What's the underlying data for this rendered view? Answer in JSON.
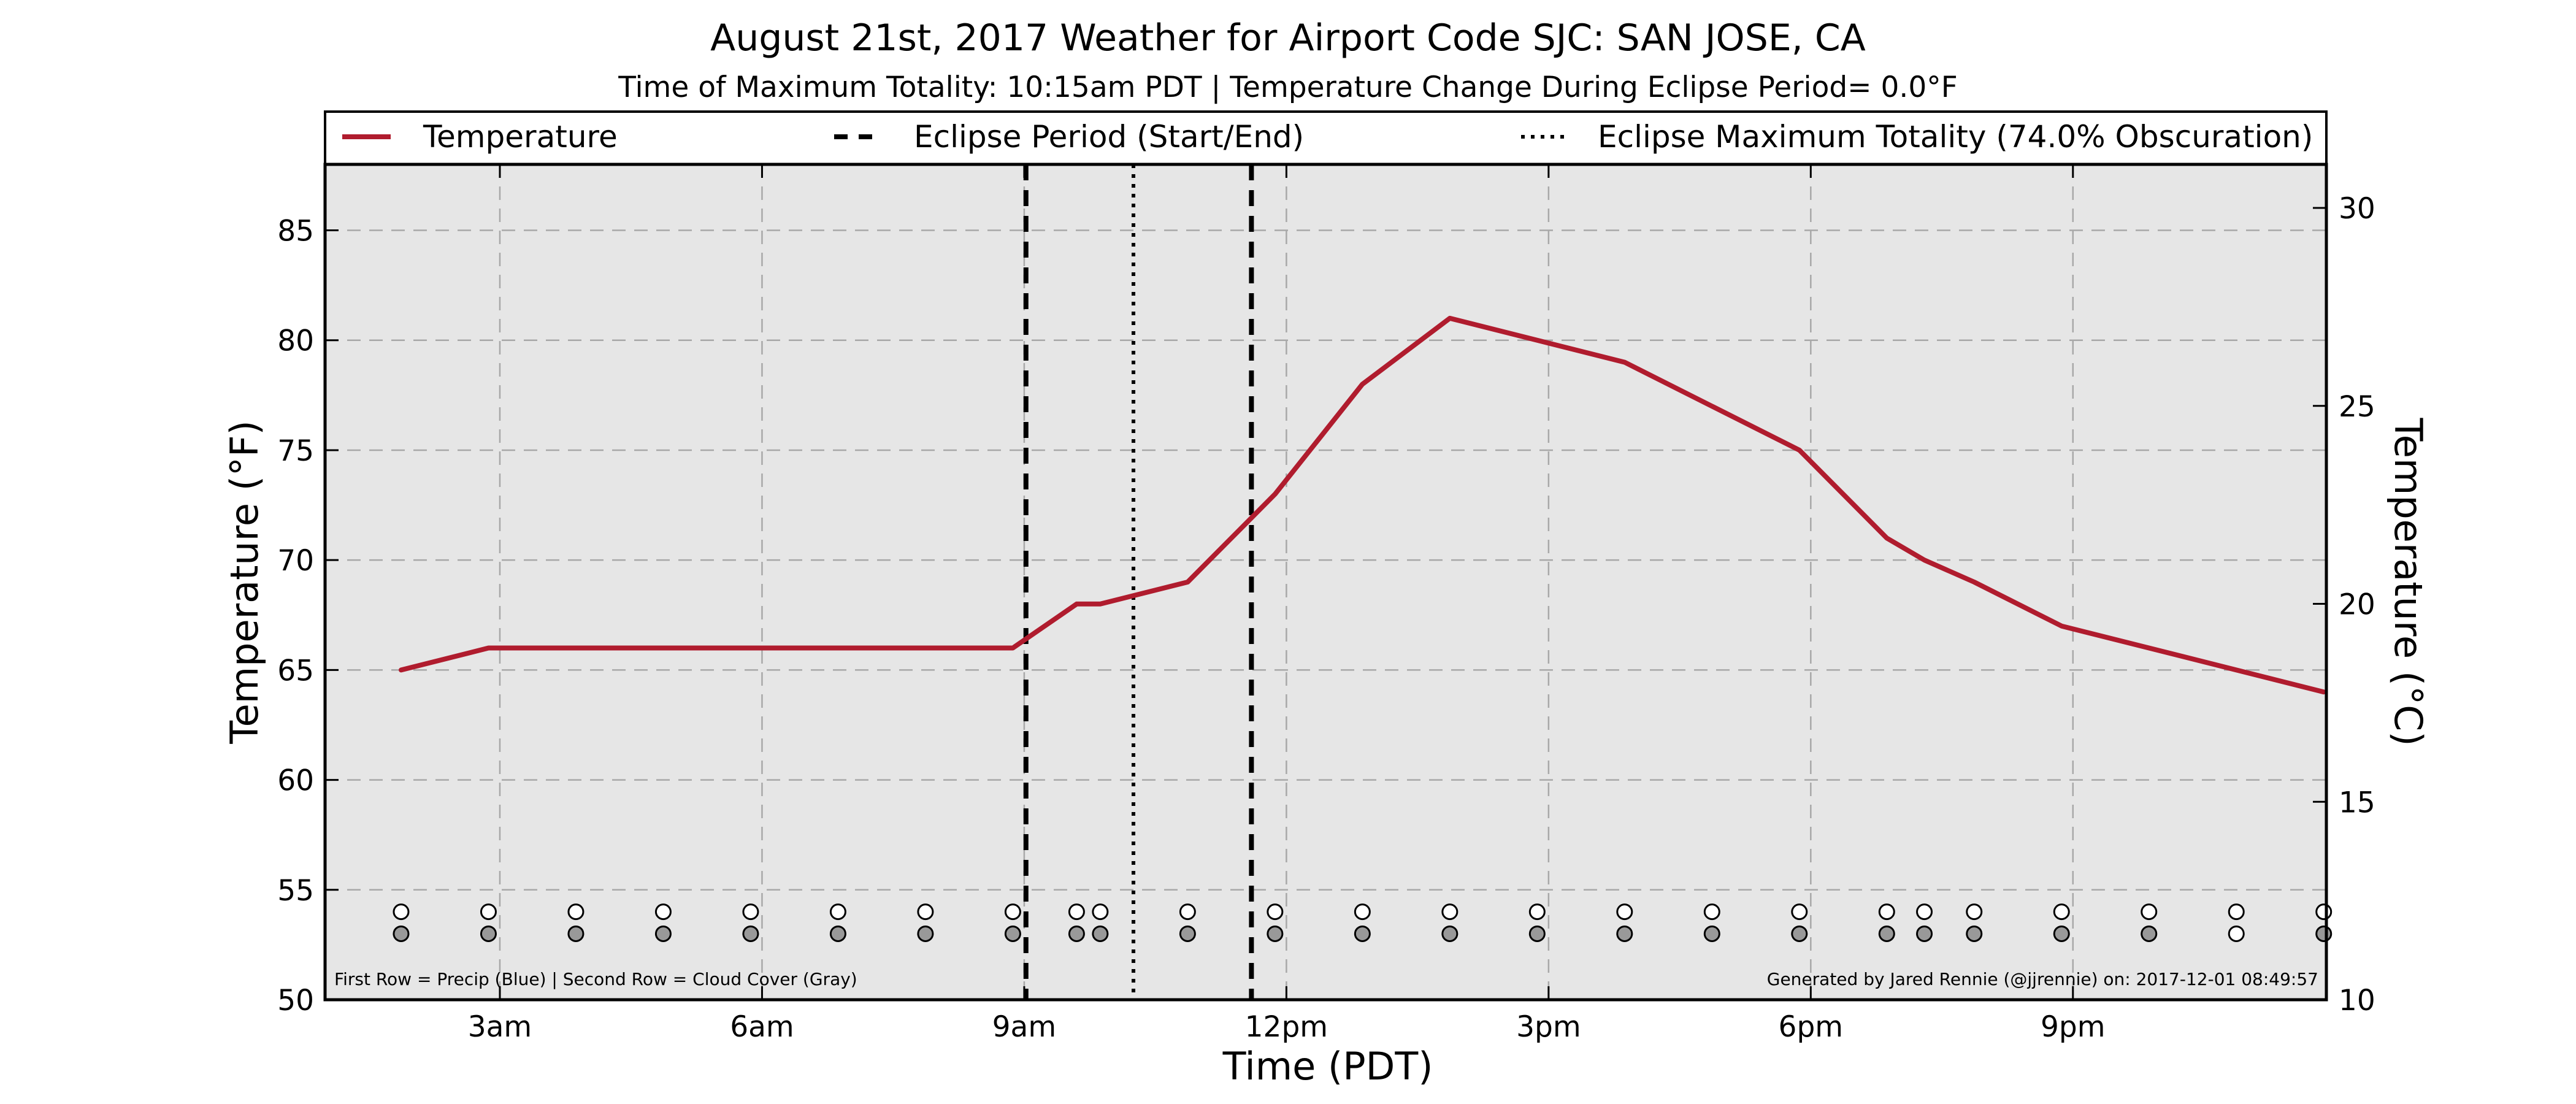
{
  "title": "August 21st, 2017 Weather for Airport Code SJC: SAN JOSE, CA",
  "subtitle": "Time of Maximum Totality: 10:15am PDT | Temperature Change During Eclipse Period= 0.0°F",
  "colors": {
    "temperature_line": "#b01c2e",
    "plot_background": "#e6e6e6",
    "cloud_marker": "#999999",
    "precip_marker": "#ffffff"
  },
  "legend": {
    "temperature": "Temperature",
    "eclipse_period": "Eclipse Period (Start/End)",
    "eclipse_max": "Eclipse Maximum Totality (74.0% Obscuration)"
  },
  "footnote_left": "First Row = Precip (Blue) | Second Row = Cloud Cover (Gray)",
  "footnote_right": "Generated by Jared Rennie (@jjrennie) on: 2017-12-01 08:49:57",
  "chart_data": {
    "type": "line",
    "title": "August 21st, 2017 Weather for Airport Code SJC: SAN JOSE, CA",
    "xlabel": "Time (PDT)",
    "ylabel": "Temperature (°F)",
    "ylabel_right": "Temperature (°C)",
    "xlim": [
      1.0,
      23.9
    ],
    "ylim": [
      50,
      88
    ],
    "ylim_right": [
      10,
      31.1
    ],
    "x_ticks": [
      {
        "value": 3,
        "label": "3am"
      },
      {
        "value": 6,
        "label": "6am"
      },
      {
        "value": 9,
        "label": "9am"
      },
      {
        "value": 12,
        "label": "12pm"
      },
      {
        "value": 15,
        "label": "3pm"
      },
      {
        "value": 18,
        "label": "6pm"
      },
      {
        "value": 21,
        "label": "9pm"
      }
    ],
    "y_ticks": [
      50,
      55,
      60,
      65,
      70,
      75,
      80,
      85
    ],
    "y_ticks_right": [
      10,
      15,
      20,
      25,
      30
    ],
    "grid": true,
    "legend_position": "top",
    "series": [
      {
        "name": "Temperature",
        "x": [
          1.87,
          2.87,
          3.87,
          4.87,
          5.87,
          6.87,
          7.87,
          8.87,
          9.6,
          9.87,
          10.87,
          11.87,
          12.87,
          13.87,
          14.87,
          15.87,
          16.87,
          17.87,
          18.87,
          19.3,
          19.87,
          20.87,
          21.87,
          22.87,
          23.87
        ],
        "y": [
          65,
          66,
          66,
          66,
          66,
          66,
          66,
          66,
          68,
          68,
          69,
          73,
          78,
          81,
          80,
          79,
          77,
          75,
          71,
          70,
          69,
          67,
          66,
          65,
          64
        ]
      }
    ],
    "vertical_lines": [
      {
        "label": "Eclipse Period (Start/End)",
        "x": [
          9.02,
          11.6
        ],
        "style": "dashed"
      },
      {
        "label": "Eclipse Maximum Totality (74.0% Obscuration)",
        "x": [
          10.25
        ],
        "style": "dotted"
      }
    ],
    "precip_row": {
      "y": 54,
      "x": [
        1.87,
        2.87,
        3.87,
        4.87,
        5.87,
        6.87,
        7.87,
        8.87,
        9.6,
        9.87,
        10.87,
        11.87,
        12.87,
        13.87,
        14.87,
        15.87,
        16.87,
        17.87,
        18.87,
        19.3,
        19.87,
        20.87,
        21.87,
        22.87,
        23.87
      ]
    },
    "cloud_row": {
      "y": 53,
      "x": [
        1.87,
        2.87,
        3.87,
        4.87,
        5.87,
        6.87,
        7.87,
        8.87,
        9.6,
        9.87,
        10.87,
        11.87,
        12.87,
        13.87,
        14.87,
        15.87,
        16.87,
        17.87,
        18.87,
        19.3,
        19.87,
        20.87,
        21.87,
        22.87,
        23.87
      ],
      "filled": [
        true,
        true,
        true,
        true,
        true,
        true,
        true,
        true,
        true,
        true,
        true,
        true,
        true,
        true,
        true,
        true,
        true,
        true,
        true,
        true,
        true,
        true,
        true,
        false,
        true
      ]
    }
  }
}
